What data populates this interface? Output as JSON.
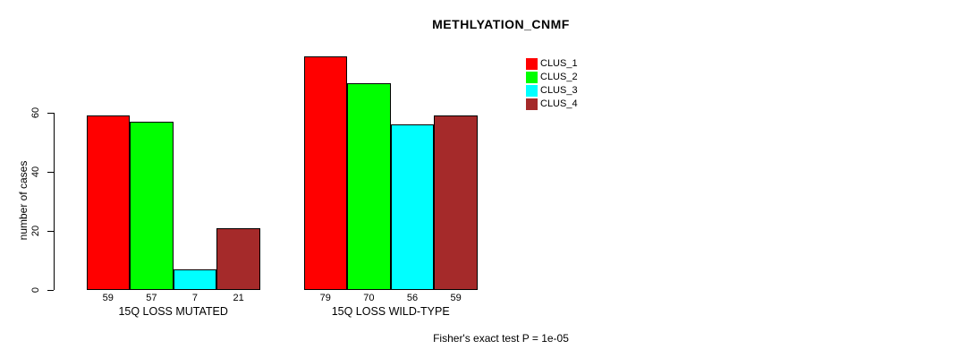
{
  "background_color": "#ffffff",
  "axis_color": "#000000",
  "chart_data": {
    "type": "bar",
    "title": "METHLYATION_CNMF",
    "ylabel": "number of cases",
    "xlabel": "",
    "yticks": [
      0,
      20,
      40,
      60
    ],
    "ylim": [
      0,
      80
    ],
    "grid": false,
    "legend_position": "upper-right",
    "categories": [
      "15Q LOSS MUTATED",
      "15Q LOSS WILD-TYPE"
    ],
    "series": [
      {
        "name": "CLUS_1",
        "color": "#ff0000",
        "values": [
          59,
          79
        ]
      },
      {
        "name": "CLUS_2",
        "color": "#00ff00",
        "values": [
          57,
          70
        ]
      },
      {
        "name": "CLUS_3",
        "color": "#00ffff",
        "values": [
          7,
          56
        ]
      },
      {
        "name": "CLUS_4",
        "color": "#a52a2a",
        "values": [
          21,
          59
        ]
      }
    ],
    "bar_value_labels_shown": true,
    "annotation": "Fisher's exact test P = 1e-05"
  }
}
